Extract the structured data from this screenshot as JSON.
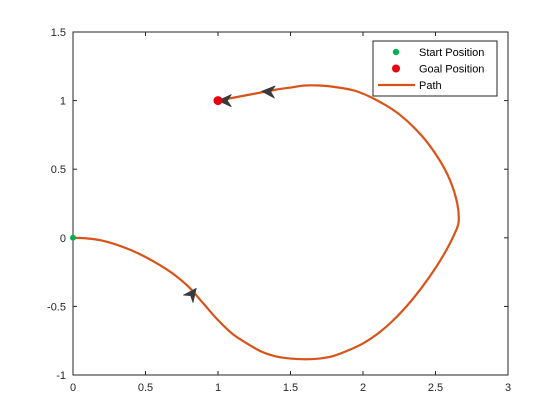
{
  "chart_data": {
    "type": "line",
    "title": "",
    "xlabel": "",
    "ylabel": "",
    "xlim": [
      0,
      3
    ],
    "ylim": [
      -1,
      1.5
    ],
    "xticks": [
      {
        "value": 0,
        "label": "0"
      },
      {
        "value": 0.5,
        "label": "0.5"
      },
      {
        "value": 1,
        "label": "1"
      },
      {
        "value": 1.5,
        "label": "1.5"
      },
      {
        "value": 2,
        "label": "2"
      },
      {
        "value": 2.5,
        "label": "2.5"
      },
      {
        "value": 3,
        "label": "3"
      }
    ],
    "yticks": [
      {
        "value": -1,
        "label": "-1"
      },
      {
        "value": -0.5,
        "label": "-0.5"
      },
      {
        "value": 0,
        "label": "0"
      },
      {
        "value": 0.5,
        "label": "0.5"
      },
      {
        "value": 1,
        "label": "1"
      },
      {
        "value": 1.5,
        "label": "1.5"
      }
    ],
    "grid": false,
    "legend_position": "top-right",
    "series": [
      {
        "name": "Start Position",
        "kind": "marker",
        "color": "#00b050",
        "points": [
          [
            0,
            0
          ]
        ]
      },
      {
        "name": "Goal Position",
        "kind": "marker",
        "color": "#e60012",
        "points": [
          [
            1,
            1
          ]
        ]
      },
      {
        "name": "Path",
        "kind": "line",
        "color": "#d95319",
        "points": [
          [
            0,
            0
          ],
          [
            0.1,
            -0.005
          ],
          [
            0.2,
            -0.02
          ],
          [
            0.3,
            -0.05
          ],
          [
            0.4,
            -0.09
          ],
          [
            0.5,
            -0.14
          ],
          [
            0.6,
            -0.2
          ],
          [
            0.7,
            -0.27
          ],
          [
            0.8,
            -0.36
          ],
          [
            0.9,
            -0.48
          ],
          [
            1.0,
            -0.6
          ],
          [
            1.1,
            -0.7
          ],
          [
            1.2,
            -0.77
          ],
          [
            1.3,
            -0.83
          ],
          [
            1.4,
            -0.865
          ],
          [
            1.5,
            -0.88
          ],
          [
            1.6,
            -0.885
          ],
          [
            1.7,
            -0.88
          ],
          [
            1.8,
            -0.86
          ],
          [
            1.9,
            -0.82
          ],
          [
            2.0,
            -0.77
          ],
          [
            2.1,
            -0.7
          ],
          [
            2.2,
            -0.61
          ],
          [
            2.3,
            -0.5
          ],
          [
            2.4,
            -0.37
          ],
          [
            2.5,
            -0.22
          ],
          [
            2.58,
            -0.08
          ],
          [
            2.64,
            0.05
          ],
          [
            2.66,
            0.12
          ],
          [
            2.65,
            0.25
          ],
          [
            2.6,
            0.42
          ],
          [
            2.52,
            0.58
          ],
          [
            2.4,
            0.75
          ],
          [
            2.25,
            0.9
          ],
          [
            2.1,
            1.0
          ],
          [
            1.95,
            1.07
          ],
          [
            1.8,
            1.1
          ],
          [
            1.7,
            1.11
          ],
          [
            1.6,
            1.11
          ],
          [
            1.5,
            1.095
          ],
          [
            1.4,
            1.08
          ],
          [
            1.3,
            1.06
          ],
          [
            1.2,
            1.04
          ],
          [
            1.1,
            1.02
          ],
          [
            1.0,
            1.0
          ]
        ]
      }
    ],
    "direction_arrows": [
      {
        "x": 0.82,
        "y": -0.41,
        "dx": 1,
        "dy": -1.3,
        "color": "#3a3a3a"
      },
      {
        "x": 1.35,
        "y": 1.065,
        "dx": -1,
        "dy": -0.06,
        "color": "#3a3a3a"
      },
      {
        "x": 1.05,
        "y": 1.0,
        "dx": -1,
        "dy": 0,
        "color": "#3a3a3a"
      }
    ]
  }
}
